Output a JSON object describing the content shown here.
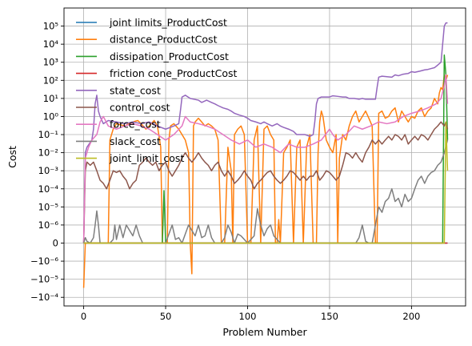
{
  "chart_data": {
    "type": "line",
    "title": "",
    "xlabel": "Problem Number",
    "ylabel": "Cost",
    "y_scale": "symlog",
    "y_linthresh": 1e-06,
    "xlim": [
      -12,
      233
    ],
    "ylim": [
      -0.0003,
      1000000.0
    ],
    "grid": true,
    "legend_position": "top-left",
    "x_ticks": [
      {
        "v": 0,
        "label": "0"
      },
      {
        "v": 50,
        "label": "50"
      },
      {
        "v": 100,
        "label": "100"
      },
      {
        "v": 150,
        "label": "150"
      },
      {
        "v": 200,
        "label": "200"
      }
    ],
    "y_ticks": [
      {
        "v": 100000.0,
        "label": "10⁵"
      },
      {
        "v": 10000.0,
        "label": "10⁴"
      },
      {
        "v": 1000.0,
        "label": "10³"
      },
      {
        "v": 100.0,
        "label": "10²"
      },
      {
        "v": 10.0,
        "label": "10¹"
      },
      {
        "v": 1.0,
        "label": "10⁰"
      },
      {
        "v": 0.1,
        "label": "10⁻¹"
      },
      {
        "v": 0.01,
        "label": "10⁻²"
      },
      {
        "v": 0.001,
        "label": "10⁻³"
      },
      {
        "v": 0.0001,
        "label": "10⁻⁴"
      },
      {
        "v": 1e-05,
        "label": "10⁻⁵"
      },
      {
        "v": 1e-06,
        "label": "10⁻⁶"
      },
      {
        "v": 0,
        "label": "0"
      },
      {
        "v": -1e-06,
        "label": "−10⁻⁶"
      },
      {
        "v": -1e-05,
        "label": "−10⁻⁵"
      },
      {
        "v": -0.0001,
        "label": "−10⁻⁴"
      }
    ],
    "series": [
      {
        "name": "joint limits_ProductCost",
        "color": "#1f77b4",
        "x": [
          0,
          222
        ],
        "y": [
          0,
          0
        ]
      },
      {
        "name": "distance_ProductCost",
        "color": "#ff7f0e",
        "x": [
          0,
          1,
          2,
          5,
          8,
          12,
          15,
          16,
          17,
          18,
          20,
          25,
          30,
          33,
          35,
          38,
          40,
          43,
          45,
          47,
          48,
          49,
          50,
          51,
          52,
          53,
          55,
          58,
          60,
          62,
          64,
          65,
          66,
          67,
          68,
          70,
          72,
          74,
          76,
          78,
          80,
          82,
          84,
          86,
          88,
          90,
          91,
          92,
          94,
          96,
          98,
          100,
          102,
          104,
          106,
          108,
          110,
          112,
          114,
          116,
          117,
          118,
          119,
          120,
          122,
          124,
          126,
          128,
          130,
          132,
          134,
          136,
          138,
          140,
          141,
          142,
          143,
          144,
          145,
          146,
          148,
          150,
          152,
          154,
          155,
          156,
          158,
          160,
          162,
          164,
          166,
          168,
          170,
          172,
          174,
          176,
          178,
          179,
          180,
          182,
          184,
          186,
          188,
          190,
          192,
          194,
          196,
          198,
          200,
          202,
          204,
          206,
          208,
          210,
          212,
          214,
          216,
          217,
          218,
          219,
          220,
          221,
          222
        ],
        "y": [
          -3e-05,
          0,
          0,
          0,
          0,
          0,
          0,
          0.05,
          0.1,
          0.2,
          0.4,
          0.3,
          0.5,
          0.6,
          0.4,
          0.2,
          0.3,
          0.6,
          0.3,
          0.02,
          0,
          0,
          0,
          0,
          0.05,
          0.3,
          0.4,
          0.2,
          0.1,
          0.05,
          0.01,
          0,
          -5e-06,
          0.3,
          0.5,
          0.8,
          0.5,
          0.3,
          0.4,
          0.3,
          0.2,
          0.05,
          0,
          0,
          0.02,
          0.001,
          0,
          0.1,
          0.2,
          0.3,
          0.1,
          0,
          0,
          0.05,
          0.3,
          0,
          0.2,
          0.3,
          0.1,
          0.05,
          0,
          0,
          2e-06,
          0,
          0.01,
          0.02,
          0.05,
          0,
          0.02,
          0.05,
          0,
          0.02,
          0.1,
          0,
          0,
          0,
          0.01,
          0.5,
          2,
          1,
          0.05,
          0.02,
          0.01,
          0.1,
          0,
          0.005,
          0.1,
          0.05,
          0.3,
          1,
          2,
          0.5,
          1,
          2,
          0.8,
          0.3,
          0,
          0,
          1.5,
          2,
          0.8,
          1,
          2,
          3,
          0.5,
          2,
          1,
          0.5,
          1,
          0.8,
          2,
          3,
          1,
          2,
          3,
          10,
          5,
          20,
          40,
          30,
          200,
          100,
          200
        ]
      },
      {
        "name": "dissipation_ProductCost",
        "color": "#2ca02c",
        "x": [
          0,
          48,
          49,
          50,
          51,
          218,
          219,
          220,
          221,
          222
        ],
        "y": [
          0,
          0,
          8e-05,
          0,
          0,
          0,
          0,
          2500,
          200,
          0.05
        ]
      },
      {
        "name": "friction cone_ProductCost",
        "color": "#d62728",
        "x": [
          0,
          222
        ],
        "y": [
          0,
          0
        ]
      },
      {
        "name": "state_cost",
        "color": "#9467bd",
        "x": [
          0,
          1,
          2,
          5,
          6,
          7,
          8,
          9,
          10,
          12,
          15,
          20,
          25,
          30,
          35,
          40,
          45,
          50,
          55,
          58,
          59,
          60,
          62,
          65,
          70,
          72,
          75,
          78,
          80,
          82,
          85,
          88,
          90,
          92,
          95,
          98,
          100,
          102,
          105,
          108,
          110,
          112,
          115,
          118,
          120,
          122,
          125,
          128,
          130,
          132,
          135,
          138,
          140,
          141,
          142,
          143,
          145,
          148,
          150,
          152,
          155,
          158,
          160,
          162,
          165,
          168,
          170,
          172,
          175,
          178,
          179,
          180,
          182,
          185,
          188,
          190,
          192,
          195,
          198,
          200,
          202,
          205,
          208,
          210,
          212,
          214,
          216,
          218,
          219,
          220,
          221,
          222
        ],
        "y": [
          0,
          0.01,
          0.02,
          0.05,
          0.2,
          5,
          15,
          2,
          1,
          0.4,
          0.6,
          0.5,
          0.4,
          0.5,
          0.4,
          0.5,
          0.3,
          0.2,
          0.3,
          0.4,
          2,
          12,
          15,
          10,
          8,
          6,
          8,
          6,
          5,
          4,
          3,
          2.5,
          2,
          1.5,
          1.2,
          1,
          0.8,
          0.6,
          0.5,
          0.4,
          0.5,
          0.4,
          0.3,
          0.4,
          0.3,
          0.25,
          0.2,
          0.15,
          0.1,
          0.1,
          0.1,
          0.08,
          0.1,
          0.5,
          5,
          10,
          12,
          12,
          12,
          14,
          13,
          12,
          12,
          10,
          10,
          9,
          10,
          9,
          9,
          9,
          40,
          150,
          170,
          160,
          150,
          200,
          180,
          220,
          240,
          300,
          280,
          320,
          380,
          400,
          450,
          500,
          700,
          1000,
          10000,
          100000,
          150000,
          150000
        ]
      },
      {
        "name": "control_cost",
        "color": "#8c564b",
        "x": [
          0,
          1,
          2,
          4,
          6,
          8,
          10,
          12,
          14,
          16,
          18,
          20,
          22,
          24,
          26,
          28,
          30,
          32,
          34,
          36,
          38,
          40,
          42,
          44,
          46,
          48,
          50,
          52,
          54,
          56,
          58,
          60,
          62,
          64,
          66,
          68,
          70,
          72,
          74,
          76,
          78,
          80,
          82,
          84,
          86,
          88,
          90,
          92,
          94,
          96,
          98,
          100,
          102,
          104,
          106,
          108,
          110,
          112,
          114,
          116,
          118,
          120,
          122,
          124,
          126,
          128,
          130,
          132,
          134,
          136,
          138,
          140,
          142,
          144,
          146,
          148,
          150,
          152,
          154,
          156,
          158,
          160,
          162,
          164,
          166,
          168,
          170,
          172,
          174,
          176,
          178,
          180,
          182,
          184,
          186,
          188,
          190,
          192,
          194,
          196,
          198,
          200,
          202,
          204,
          206,
          208,
          210,
          212,
          214,
          216,
          218,
          220,
          221,
          222
        ],
        "y": [
          0,
          0.001,
          0.003,
          0.002,
          0.003,
          0.001,
          0.0003,
          0.0002,
          0.0001,
          0.0003,
          0.001,
          0.0008,
          0.001,
          0.0005,
          0.0003,
          0.0001,
          0.0002,
          0.0003,
          0.002,
          0.003,
          0.005,
          0.003,
          0.002,
          0.003,
          0.001,
          0.002,
          0.003,
          0.001,
          0.0005,
          0.001,
          0.002,
          0.005,
          0.01,
          0.005,
          0.003,
          0.005,
          0.01,
          0.005,
          0.003,
          0.002,
          0.001,
          0.002,
          0.003,
          0.001,
          0.0005,
          0.001,
          0.0005,
          0.0002,
          0.0003,
          0.0005,
          0.001,
          0.0005,
          0.0003,
          0.0001,
          0.0002,
          0.0003,
          0.0005,
          0.0008,
          0.001,
          0.0005,
          0.0003,
          0.0002,
          0.0003,
          0.0005,
          0.001,
          0.0008,
          0.0005,
          0.0003,
          0.0005,
          0.0003,
          0.0005,
          0.0005,
          0.001,
          0.0003,
          0.0005,
          0.001,
          0.0008,
          0.0005,
          0.0003,
          0.0005,
          0.002,
          0.01,
          0.008,
          0.005,
          0.01,
          0.005,
          0.003,
          0.01,
          0.02,
          0.05,
          0.03,
          0.05,
          0.03,
          0.05,
          0.08,
          0.05,
          0.1,
          0.08,
          0.05,
          0.1,
          0.03,
          0.05,
          0.08,
          0.05,
          0.1,
          0.08,
          0.05,
          0.1,
          0.2,
          0.3,
          0.5,
          0.3,
          0.5,
          0.2
        ]
      },
      {
        "name": "force_cost",
        "color": "#e377c2",
        "x": [
          0,
          1,
          3,
          5,
          8,
          10,
          12,
          15,
          20,
          25,
          30,
          35,
          40,
          45,
          50,
          55,
          60,
          62,
          65,
          70,
          75,
          80,
          85,
          90,
          95,
          100,
          105,
          110,
          115,
          120,
          125,
          130,
          135,
          140,
          145,
          150,
          152,
          155,
          160,
          165,
          170,
          175,
          180,
          185,
          190,
          195,
          200,
          205,
          210,
          215,
          218,
          220,
          221,
          222
        ],
        "y": [
          0,
          0.005,
          0.02,
          0.05,
          0.1,
          0.5,
          1,
          0.3,
          0.2,
          0.3,
          0.4,
          0.3,
          0.2,
          0.1,
          0.05,
          0.1,
          0.3,
          1,
          0.5,
          0.4,
          0.3,
          0.2,
          0.1,
          0.05,
          0.03,
          0.05,
          0.02,
          0.03,
          0.02,
          0.01,
          0.03,
          0.02,
          0.02,
          0.03,
          0.05,
          0.2,
          0.1,
          0.05,
          0.1,
          0.3,
          0.2,
          0.3,
          0.5,
          0.4,
          0.5,
          1,
          1.5,
          2,
          3,
          5,
          10,
          50,
          200,
          5
        ]
      },
      {
        "name": "slack_cost",
        "color": "#7f7f7f",
        "x": [
          0,
          1,
          2,
          4,
          6,
          7,
          8,
          9,
          10,
          14,
          16,
          18,
          19,
          20,
          22,
          24,
          26,
          30,
          32,
          34,
          36,
          38,
          40,
          44,
          50,
          54,
          56,
          58,
          60,
          64,
          68,
          70,
          72,
          74,
          76,
          78,
          80,
          84,
          86,
          88,
          90,
          92,
          94,
          96,
          100,
          104,
          106,
          108,
          110,
          112,
          114,
          116,
          120,
          124,
          126,
          128,
          130,
          136,
          140,
          144,
          146,
          148,
          150,
          152,
          154,
          160,
          164,
          166,
          168,
          170,
          172,
          174,
          176,
          178,
          180,
          182,
          184,
          186,
          188,
          190,
          192,
          194,
          196,
          198,
          200,
          202,
          204,
          206,
          208,
          210,
          212,
          214,
          216,
          218,
          220,
          222
        ],
        "y": [
          0,
          3e-07,
          1e-07,
          0,
          3e-07,
          1e-06,
          6e-06,
          1e-06,
          0,
          0,
          0,
          2e-07,
          1e-06,
          2e-07,
          1e-06,
          3e-07,
          1e-06,
          4e-07,
          1e-06,
          4e-07,
          0,
          0,
          0,
          0,
          0,
          1e-06,
          2e-07,
          3e-07,
          0,
          1e-06,
          4e-07,
          1e-06,
          3e-07,
          4e-07,
          1e-06,
          3e-07,
          0,
          0,
          3e-07,
          1e-06,
          6e-07,
          0,
          5e-07,
          4e-07,
          0,
          4e-07,
          8e-06,
          1e-06,
          4e-07,
          8e-07,
          1e-06,
          4e-07,
          0,
          0,
          0,
          0,
          0,
          0,
          0,
          0,
          0,
          0,
          0,
          0,
          0,
          0,
          0,
          0,
          3e-07,
          1e-06,
          1e-07,
          0,
          0,
          1e-06,
          1e-05,
          5e-06,
          2e-05,
          3e-05,
          0.0001,
          2e-05,
          3e-05,
          1e-05,
          5e-05,
          2e-05,
          3e-05,
          0.0001,
          0.0003,
          0.0005,
          0.0002,
          0.0005,
          0.0008,
          0.001,
          0.002,
          0.003,
          0.01,
          0.05
        ]
      },
      {
        "name": "joint_limit_cost",
        "color": "#bcbd22",
        "x": [
          0,
          220,
          221,
          222
        ],
        "y": [
          0,
          0,
          0.5,
          0.001
        ]
      }
    ]
  }
}
